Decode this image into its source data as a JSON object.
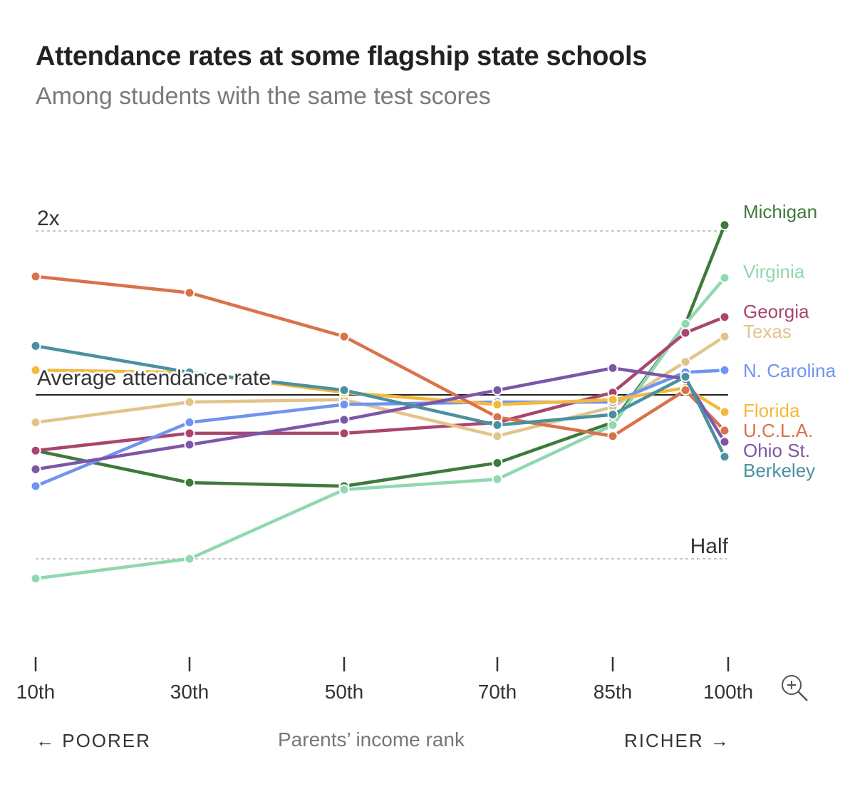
{
  "title": "Attendance rates at some flagship state schools",
  "subtitle": "Among students with the same test scores",
  "icons": {
    "zoom": "zoom-in-icon"
  },
  "chart_data": {
    "type": "line",
    "title": "Attendance rates at some flagship state schools",
    "subtitle": "Among students with the same test scores",
    "xlabel": "Parents’ income rank",
    "x_direction_labels": {
      "left": "← POORER",
      "right": "RICHER →"
    },
    "x_ticks": [
      "10th",
      "30th",
      "50th",
      "70th",
      "85th",
      "100th"
    ],
    "x_values": [
      10,
      30,
      50,
      70,
      85,
      95,
      100
    ],
    "x_range": [
      10,
      100
    ],
    "y_scale": "log2",
    "y_range": [
      0.4,
      2.4
    ],
    "reference_lines": [
      {
        "value": 2,
        "label": "2x",
        "style": "dashed"
      },
      {
        "value": 1,
        "label": "Average attendance rate",
        "style": "solid"
      },
      {
        "value": 0.5,
        "label": "Half",
        "style": "dashed"
      }
    ],
    "series": [
      {
        "name": "Michigan",
        "color": "#3f7a3a",
        "values": [
          0.79,
          0.69,
          0.68,
          0.75,
          0.89,
          1.35,
          2.05
        ]
      },
      {
        "name": "Virginia",
        "color": "#8fd8b0",
        "values": [
          0.46,
          0.5,
          0.67,
          0.7,
          0.88,
          1.35,
          1.64
        ]
      },
      {
        "name": "Georgia",
        "color": "#a9456f",
        "values": [
          0.79,
          0.85,
          0.85,
          0.89,
          1.01,
          1.3,
          1.39
        ]
      },
      {
        "name": "Texas",
        "color": "#e2c48a",
        "values": [
          0.89,
          0.97,
          0.98,
          0.84,
          0.95,
          1.15,
          1.28
        ]
      },
      {
        "name": "N. Carolina",
        "color": "#6f93f0",
        "values": [
          0.68,
          0.89,
          0.96,
          0.97,
          0.97,
          1.1,
          1.11
        ]
      },
      {
        "name": "Florida",
        "color": "#f2b93b",
        "values": [
          1.11,
          1.1,
          1.01,
          0.96,
          0.98,
          1.03,
          0.93
        ]
      },
      {
        "name": "U.C.L.A.",
        "color": "#d9724a",
        "values": [
          1.65,
          1.54,
          1.28,
          0.91,
          0.84,
          1.02,
          0.86
        ]
      },
      {
        "name": "Ohio St.",
        "color": "#7d56a8",
        "values": [
          0.73,
          0.81,
          0.9,
          1.02,
          1.12,
          1.07,
          0.82
        ]
      },
      {
        "name": "Berkeley",
        "color": "#4a90a0",
        "values": [
          1.23,
          1.1,
          1.02,
          0.88,
          0.92,
          1.08,
          0.77
        ]
      }
    ]
  }
}
